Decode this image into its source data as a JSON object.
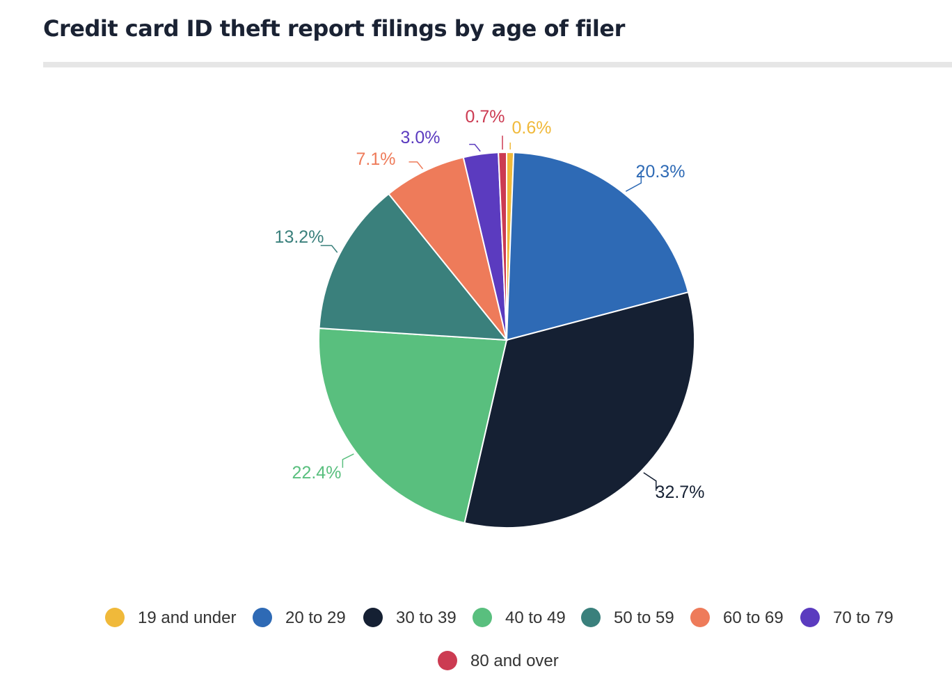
{
  "title": "Credit card ID theft report filings by age of filer",
  "chart_data": {
    "type": "pie",
    "categories": [
      "19 and under",
      "20 to 29",
      "30 to 39",
      "40 to 49",
      "50 to 59",
      "60 to 69",
      "70 to 79",
      "80 and over"
    ],
    "values": [
      0.6,
      20.3,
      32.7,
      22.4,
      13.2,
      7.1,
      3.0,
      0.7
    ],
    "labels": [
      "0.6%",
      "20.3%",
      "32.7%",
      "22.4%",
      "13.2%",
      "7.1%",
      "3.0%",
      "0.7%"
    ],
    "colors": [
      "#f0b93a",
      "#2e6ab5",
      "#152033",
      "#59bf7e",
      "#3a807c",
      "#ee7b5a",
      "#5b3bbf",
      "#cc3b52"
    ],
    "legend_position": "bottom"
  }
}
